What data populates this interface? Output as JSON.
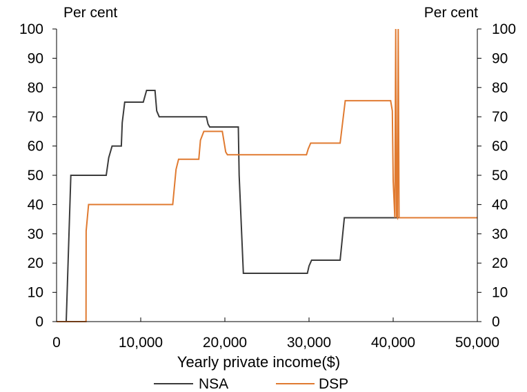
{
  "chart_data": {
    "type": "line",
    "y_unit_left": "Per cent",
    "y_unit_right": "Per cent",
    "xlabel": "Yearly private income($)",
    "xlim": [
      0,
      50000
    ],
    "ylim": [
      0,
      100
    ],
    "x_ticks": [
      0,
      10000,
      20000,
      30000,
      40000,
      50000
    ],
    "x_tick_labels": [
      "0",
      "10,000",
      "20,000",
      "30,000",
      "40,000",
      "50,000"
    ],
    "y_ticks": [
      0,
      10,
      20,
      30,
      40,
      50,
      60,
      70,
      80,
      90,
      100
    ],
    "y_tick_labels": [
      "0",
      "10",
      "20",
      "30",
      "40",
      "50",
      "60",
      "70",
      "80",
      "90",
      "100"
    ],
    "grid": false,
    "legend_position": "bottom",
    "series": [
      {
        "name": "NSA",
        "color": "#3a3a3a",
        "x": [
          0,
          1150,
          1700,
          5900,
          6200,
          6600,
          7700,
          7800,
          8100,
          10300,
          10700,
          11700,
          11900,
          12200,
          17800,
          18000,
          18200,
          21600,
          21700,
          22200,
          29800,
          30000,
          30300,
          33700,
          34200,
          50000
        ],
        "y": [
          0,
          0,
          50,
          50,
          56,
          60,
          60,
          68,
          75,
          75,
          79,
          79,
          72,
          70,
          70,
          67.5,
          66.5,
          66.5,
          50,
          16.5,
          16.5,
          19,
          21,
          21,
          35.5,
          35.5
        ]
      },
      {
        "name": "DSP",
        "color": "#e07a30",
        "x": [
          0,
          3500,
          3520,
          3800,
          13800,
          14200,
          14500,
          16900,
          17100,
          17500,
          19700,
          20100,
          20300,
          29700,
          29900,
          30200,
          33700,
          34300,
          39700,
          39900,
          40000,
          40200,
          40300,
          40400,
          40500,
          40600,
          40700,
          50000
        ],
        "y": [
          0,
          0,
          31,
          40,
          40,
          52,
          55.5,
          55.5,
          62,
          65,
          65,
          58,
          57,
          57,
          59,
          61,
          61,
          75.5,
          75.5,
          72,
          48,
          35.5,
          100,
          36,
          35.5,
          100,
          35.5,
          35.5
        ]
      }
    ]
  }
}
